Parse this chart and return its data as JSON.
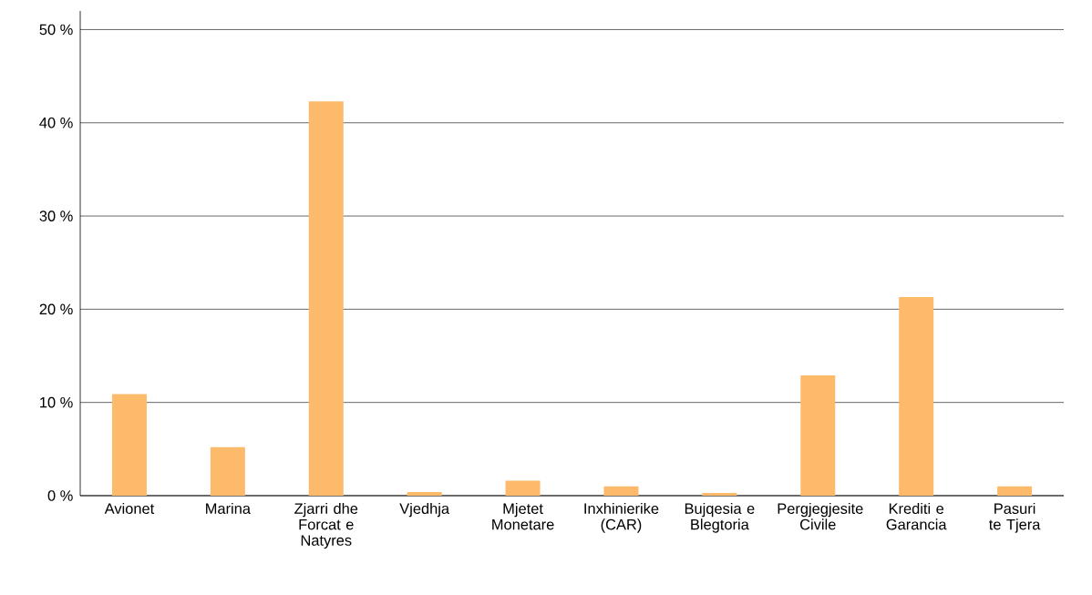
{
  "chart_data": {
    "type": "bar",
    "categories": [
      "Avionet",
      "Marina",
      "Zjarri dhe Forcat e Natyres",
      "Vjedhja",
      "Mjetet Monetare",
      "Inxhinierike (CAR)",
      "Bujqesia e Blegtoria",
      "Pergjegjesite Civile",
      "Krediti e Garancia",
      "Pasuri te Tjera"
    ],
    "values": [
      10.9,
      5.2,
      42.3,
      0.4,
      1.6,
      1.0,
      0.3,
      12.9,
      21.3,
      1.0
    ],
    "color": "#fdba6b",
    "ylim": [
      0,
      52
    ],
    "yticks": [
      {
        "value": 0,
        "label": "0 %"
      },
      {
        "value": 10,
        "label": "10 %"
      },
      {
        "value": 20,
        "label": "20 %"
      },
      {
        "value": 30,
        "label": "30 %"
      },
      {
        "value": 40,
        "label": "40 %"
      },
      {
        "value": 50,
        "label": "50 %"
      }
    ],
    "grid": "y"
  }
}
